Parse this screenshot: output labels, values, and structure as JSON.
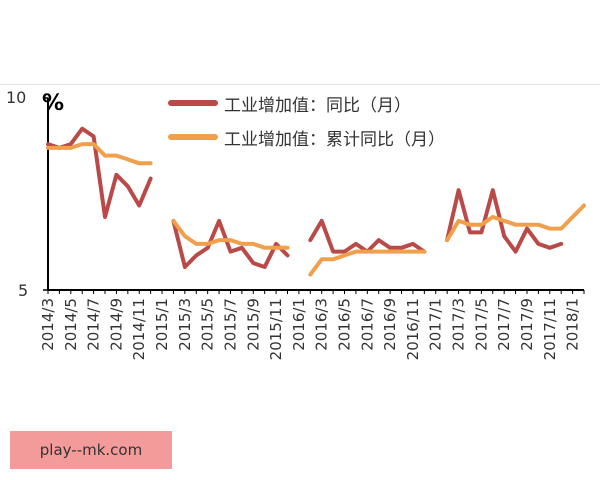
{
  "chart_data": {
    "type": "line",
    "unit_label": "%",
    "ylim": [
      5,
      10
    ],
    "yticks": [
      "10",
      "5"
    ],
    "x": [
      "2014/3",
      "2014/4",
      "2014/5",
      "2014/6",
      "2014/7",
      "2014/8",
      "2014/9",
      "2014/10",
      "2014/11",
      "2014/12",
      "2015/1",
      "2015/2",
      "2015/3",
      "2015/4",
      "2015/5",
      "2015/6",
      "2015/7",
      "2015/8",
      "2015/9",
      "2015/10",
      "2015/11",
      "2015/12",
      "2016/1",
      "2016/2",
      "2016/3",
      "2016/4",
      "2016/5",
      "2016/6",
      "2016/7",
      "2016/8",
      "2016/9",
      "2016/10",
      "2016/11",
      "2016/12",
      "2017/1",
      "2017/2",
      "2017/3",
      "2017/4",
      "2017/5",
      "2017/6",
      "2017/7",
      "2017/8",
      "2017/9",
      "2017/10",
      "2017/11",
      "2017/12",
      "2018/1",
      "2018/2"
    ],
    "xtick_labels": [
      "2014/3",
      "2014/5",
      "2014/7",
      "2014/9",
      "2014/11",
      "2015/1",
      "2015/3",
      "2015/5",
      "2015/7",
      "2015/9",
      "2015/11",
      "2016/1",
      "2016/3",
      "2016/5",
      "2016/7",
      "2016/9",
      "2016/11",
      "2017/1",
      "2017/3",
      "2017/5",
      "2017/7",
      "2017/9",
      "2017/11",
      "2018/1"
    ],
    "series": [
      {
        "name": "工业增加值：同比（月）",
        "color": "#b94a48",
        "values": [
          8.8,
          8.7,
          8.8,
          9.2,
          9.0,
          6.9,
          8.0,
          7.7,
          7.2,
          7.9,
          null,
          6.8,
          5.6,
          5.9,
          6.1,
          6.8,
          6.0,
          6.1,
          5.7,
          5.6,
          6.2,
          5.9,
          null,
          6.3,
          6.8,
          6.0,
          6.0,
          6.2,
          6.0,
          6.3,
          6.1,
          6.1,
          6.2,
          6.0,
          null,
          6.3,
          7.6,
          6.5,
          6.5,
          7.6,
          6.4,
          6.0,
          6.6,
          6.2,
          6.1,
          6.2,
          null,
          null
        ]
      },
      {
        "name": "工业增加值：累计同比（月）",
        "color": "#f0a04b",
        "values": [
          8.7,
          8.7,
          8.7,
          8.8,
          8.8,
          8.5,
          8.5,
          8.4,
          8.3,
          8.3,
          null,
          6.8,
          6.4,
          6.2,
          6.2,
          6.3,
          6.3,
          6.2,
          6.2,
          6.1,
          6.1,
          6.1,
          null,
          5.4,
          5.8,
          5.8,
          5.9,
          6.0,
          6.0,
          6.0,
          6.0,
          6.0,
          6.0,
          6.0,
          null,
          6.3,
          6.8,
          6.7,
          6.7,
          6.9,
          6.8,
          6.7,
          6.7,
          6.7,
          6.6,
          6.6,
          6.9,
          7.2
        ]
      }
    ]
  },
  "watermark": "play-‐mk.com"
}
